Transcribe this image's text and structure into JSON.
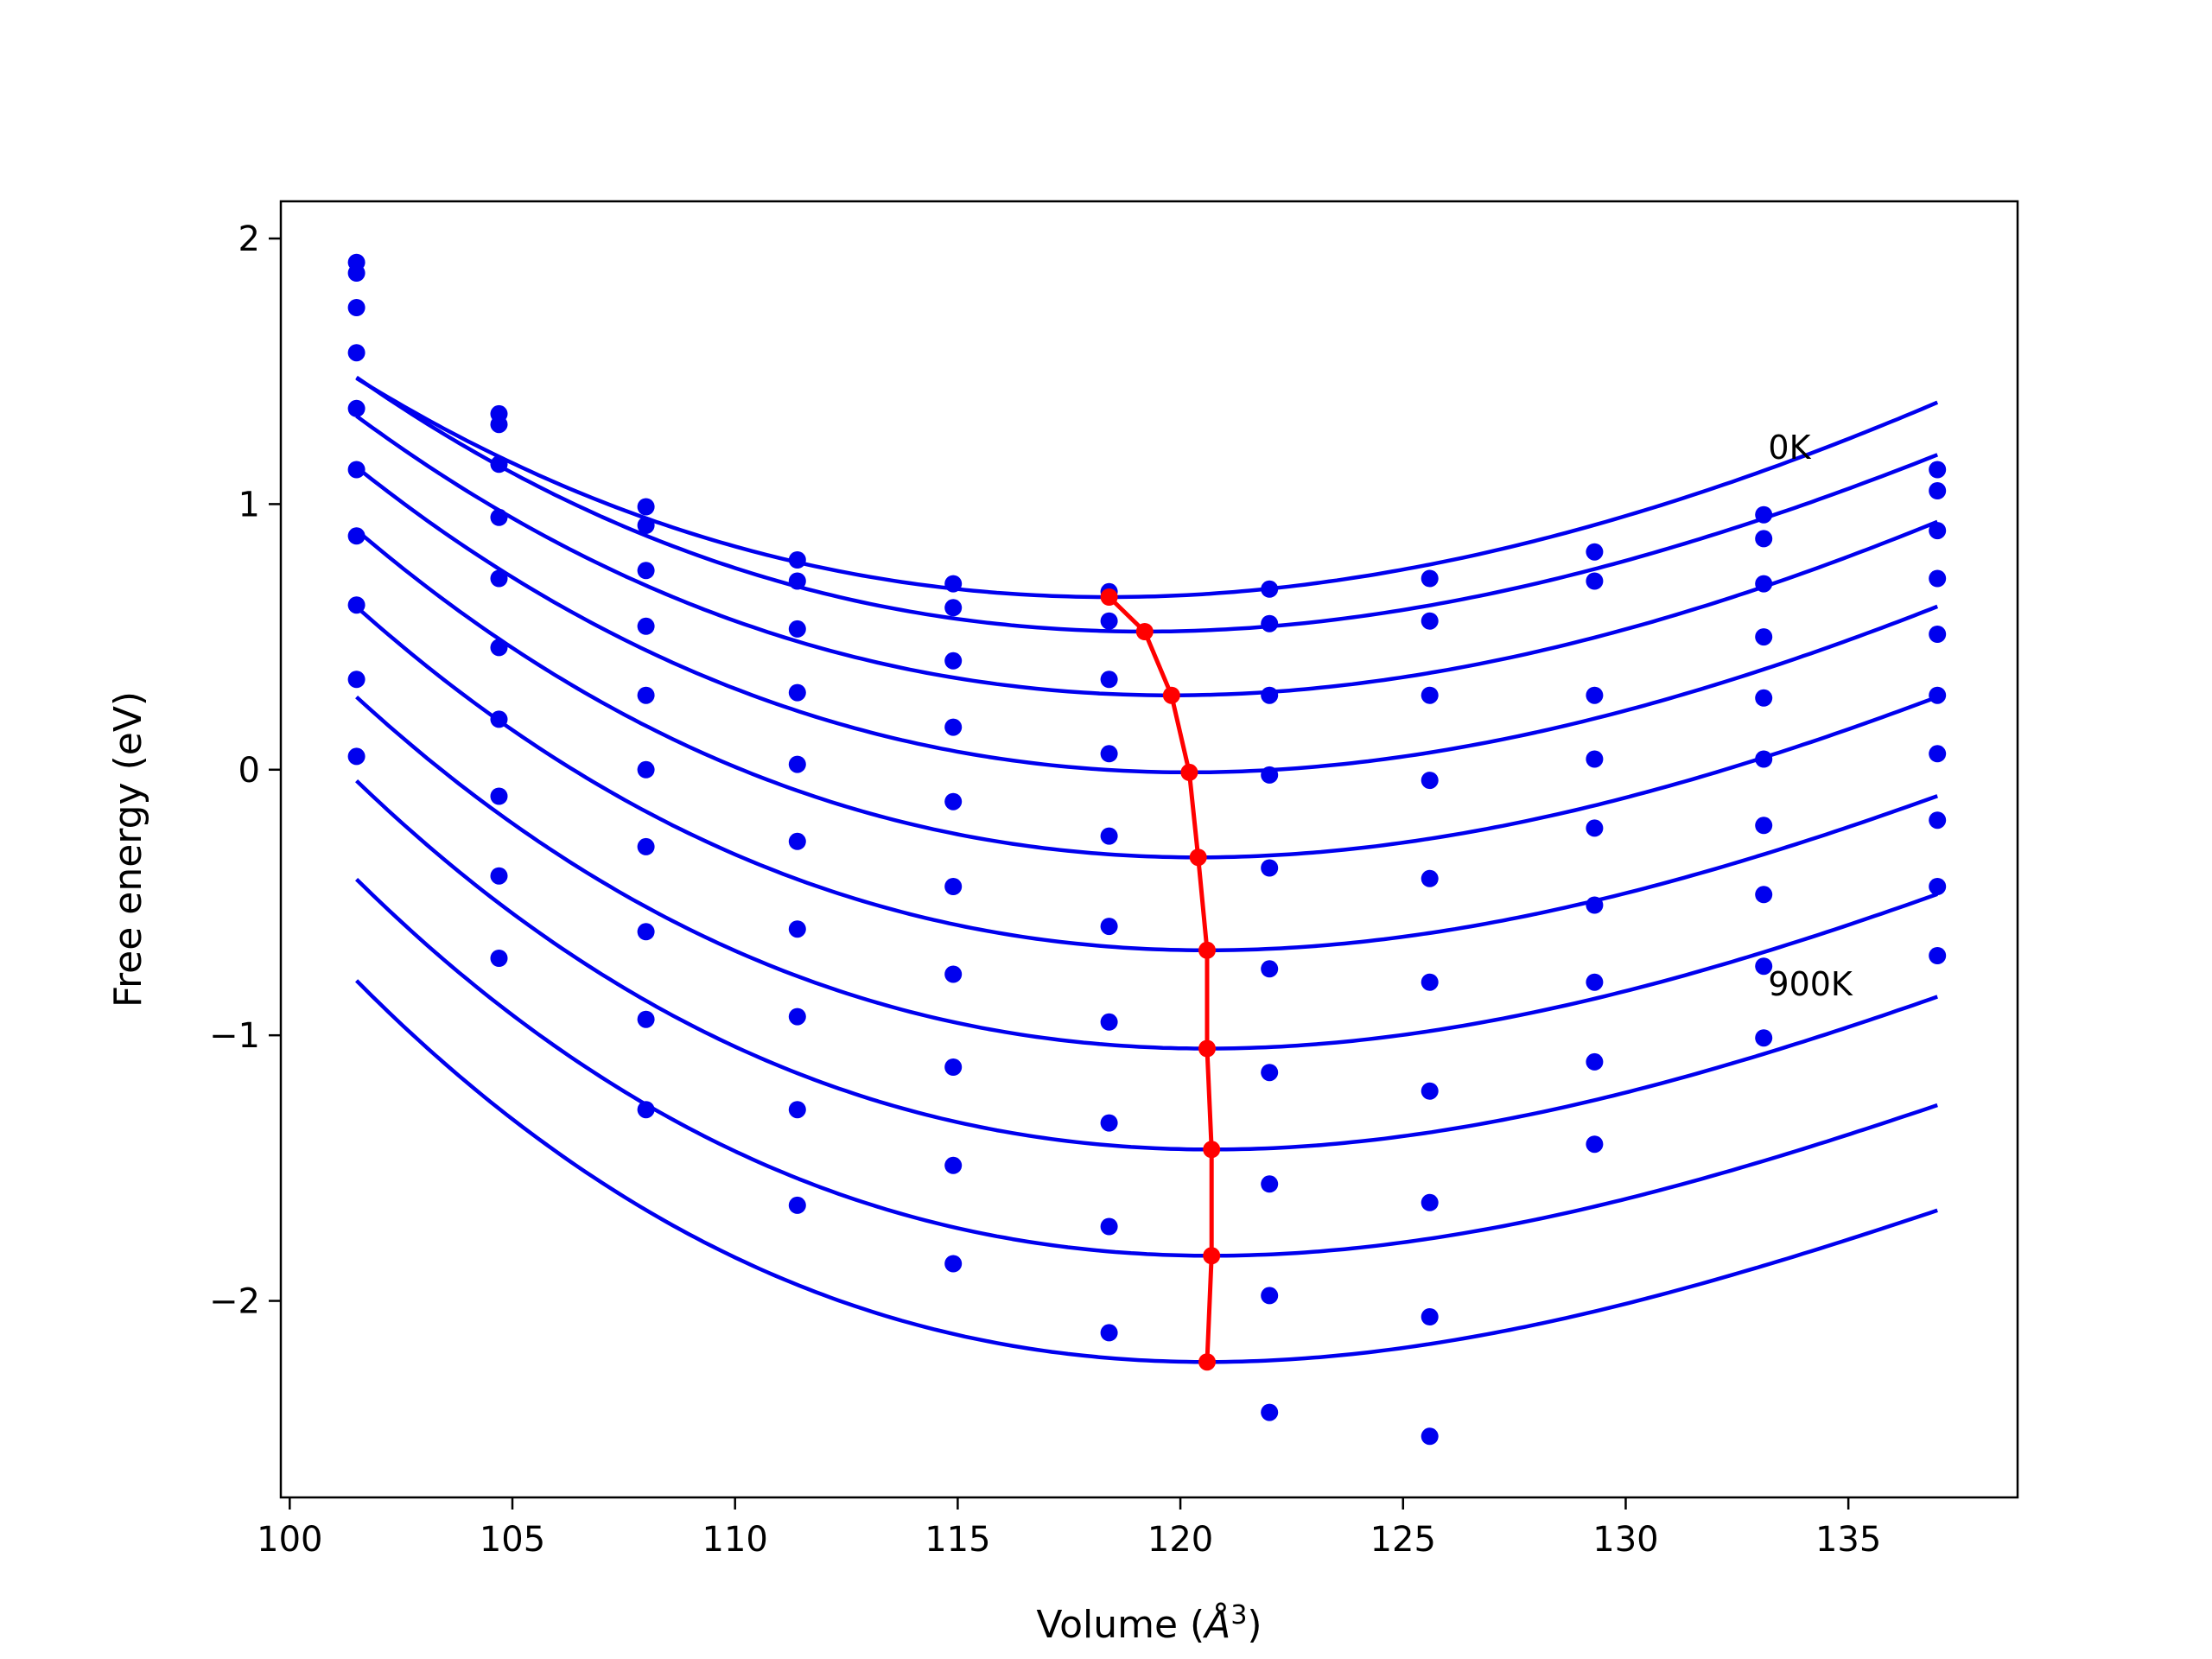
{
  "chart_data": {
    "type": "scatter",
    "title": "",
    "xlabel": "Volume (",
    "xlabel_unit": "Å",
    "xlabel_exp": "3",
    "xlabel_close": ")",
    "ylabel": "Free energy (eV)",
    "xlim": [
      99.8,
      138.8
    ],
    "ylim": [
      -2.74,
      2.14
    ],
    "xticks": [
      100,
      105,
      110,
      115,
      120,
      125,
      130,
      135
    ],
    "yticks": [
      2,
      1,
      0,
      -1,
      -2
    ],
    "ytick_labels": [
      "2",
      "1",
      "0",
      "−1",
      "−2"
    ],
    "grid": false,
    "line_color": "#0000ee",
    "min_color": "#ff0000",
    "annotations": [
      {
        "text": "0K",
        "x": 133.2,
        "y": 1.17
      },
      {
        "text": "900K",
        "x": 133.2,
        "y": -0.85
      }
    ],
    "volumes": [
      101.5,
      104.7,
      108.0,
      111.4,
      114.9,
      118.4,
      122.0,
      125.6,
      129.3,
      133.1,
      137.0
    ],
    "series": [
      {
        "values": [
          1.91,
          1.34,
          0.99,
          0.79,
          0.7,
          0.67,
          0.68,
          0.72,
          0.82,
          0.96,
          1.13
        ]
      },
      {
        "values": [
          1.87,
          1.3,
          0.92,
          0.71,
          0.61,
          0.56,
          0.55,
          0.56,
          0.71,
          0.87,
          1.05
        ]
      },
      {
        "values": [
          1.74,
          1.15,
          0.75,
          0.53,
          0.41,
          0.34,
          0.28,
          0.28,
          0.28,
          0.7,
          0.9
        ]
      },
      {
        "values": [
          1.57,
          0.95,
          0.54,
          0.29,
          0.16,
          0.06,
          -0.02,
          -0.04,
          0.04,
          0.5,
          0.72
        ]
      },
      {
        "values": [
          1.36,
          0.72,
          0.28,
          0.02,
          -0.12,
          -0.25,
          -0.37,
          -0.41,
          -0.22,
          0.27,
          0.51
        ]
      },
      {
        "values": [
          1.13,
          0.46,
          0.0,
          -0.27,
          -0.44,
          -0.59,
          -0.75,
          -0.8,
          -0.51,
          0.04,
          0.28
        ]
      },
      {
        "values": [
          0.88,
          0.19,
          -0.29,
          -0.6,
          -0.77,
          -0.95,
          -1.14,
          -1.21,
          -0.8,
          -0.21,
          0.06
        ]
      },
      {
        "values": [
          0.62,
          -0.1,
          -0.61,
          -0.93,
          -1.12,
          -1.33,
          -1.56,
          -1.63,
          -1.1,
          -0.47,
          -0.19
        ]
      },
      {
        "values": [
          0.34,
          -0.4,
          -0.94,
          -1.28,
          -1.49,
          -1.72,
          -1.98,
          -2.06,
          -1.41,
          -0.74,
          -0.44
        ]
      },
      {
        "values": [
          0.05,
          -0.71,
          -1.28,
          -1.64,
          -1.86,
          -2.12,
          -2.42,
          -2.51,
          null,
          -1.01,
          -0.7
        ]
      }
    ],
    "fits": [
      {
        "v0": 118.4,
        "e0": 0.65,
        "a": 0.00252,
        "b": -2.16e-05
      },
      {
        "v0": 119.2,
        "e0": 0.52,
        "a": 0.00258,
        "b": -2.69e-05
      },
      {
        "v0": 119.8,
        "e0": 0.28,
        "a": 0.00266,
        "b": -2.62e-05
      },
      {
        "v0": 120.2,
        "e0": -0.01,
        "a": 0.00272,
        "b": -3.02e-05
      },
      {
        "v0": 120.4,
        "e0": -0.33,
        "a": 0.00278,
        "b": -3.54e-05
      },
      {
        "v0": 120.6,
        "e0": -0.68,
        "a": 0.0028,
        "b": -3.9e-05
      },
      {
        "v0": 120.6,
        "e0": -1.05,
        "a": 0.00284,
        "b": -4.13e-05
      },
      {
        "v0": 120.7,
        "e0": -1.43,
        "a": 0.0029,
        "b": -4.51e-05
      },
      {
        "v0": 120.7,
        "e0": -1.83,
        "a": 0.00292,
        "b": -4.82e-05
      },
      {
        "v0": 120.6,
        "e0": -2.23,
        "a": 0.00296,
        "b": -5.11e-05
      }
    ],
    "fit_range": [
      101.5,
      137.0
    ],
    "minima": {
      "x": [
        118.4,
        119.2,
        119.8,
        120.2,
        120.4,
        120.6,
        120.6,
        120.7,
        120.7,
        120.6
      ],
      "y": [
        0.65,
        0.52,
        0.28,
        -0.01,
        -0.33,
        -0.68,
        -1.05,
        -1.43,
        -1.83,
        -2.23
      ]
    }
  }
}
